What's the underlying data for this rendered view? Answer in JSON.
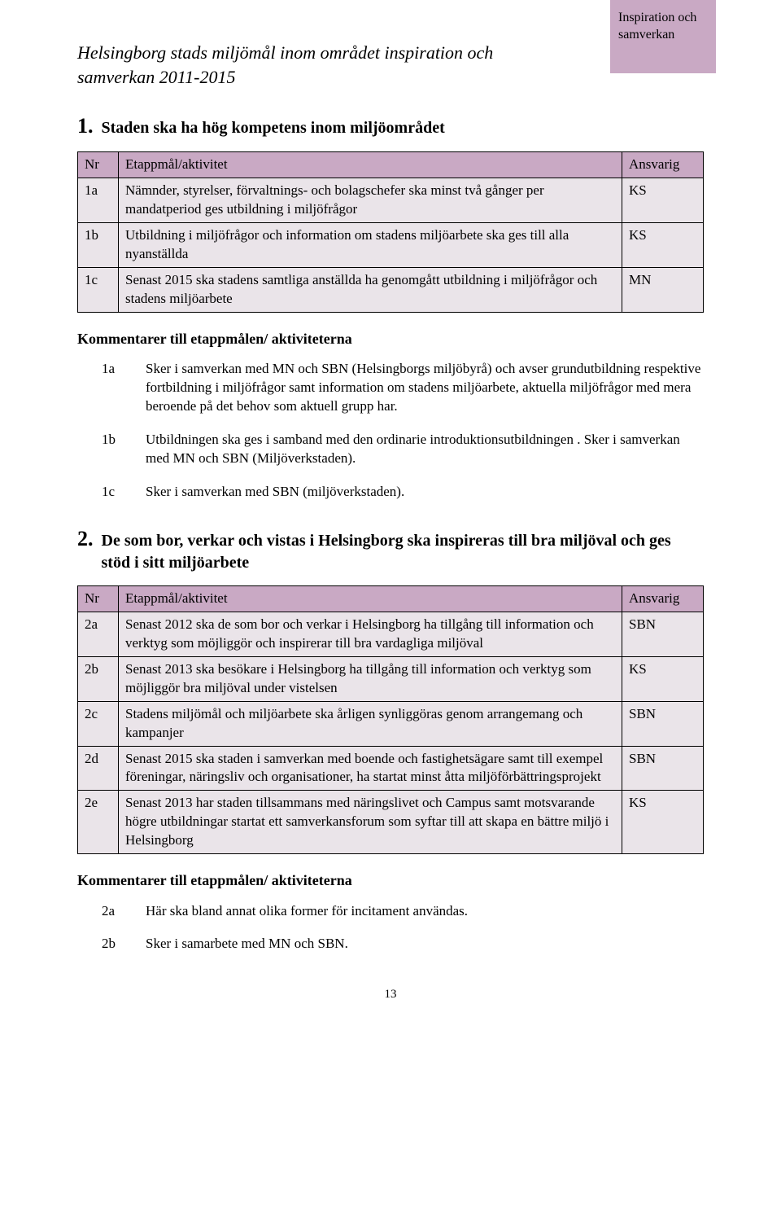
{
  "sidebar": {
    "text": "Inspiration och samverkan",
    "bg": "#c9a9c4"
  },
  "section_title": "Helsingborg stads miljömål inom området inspiration och samverkan 2011-2015",
  "section1": {
    "num": "1.",
    "heading": "Staden ska ha hög kompetens inom miljöområdet",
    "cols": {
      "nr": "Nr",
      "akt": "Etappmål/aktivitet",
      "ansv": "Ansvarig"
    },
    "rows": [
      {
        "nr": "1a",
        "akt": "Nämnder, styrelser, förvaltnings- och bolagschefer ska minst två gånger per mandatperiod ges utbildning i miljöfrågor",
        "ansv": "KS"
      },
      {
        "nr": "1b",
        "akt": "Utbildning i miljöfrågor och information om stadens miljöarbete ska ges till alla nyanställda",
        "ansv": "KS"
      },
      {
        "nr": "1c",
        "akt": "Senast 2015 ska stadens samtliga anställda ha genomgått utbildning i miljöfrågor och stadens miljöarbete",
        "ansv": "MN"
      }
    ],
    "comments_heading": "Kommentarer till etappmålen/ aktiviteterna",
    "comments": [
      {
        "id": "1a",
        "txt": "Sker i samverkan med MN och SBN (Helsingborgs miljöbyrå) och avser grundutbildning respektive fortbildning i miljöfrågor samt information om stadens miljöarbete, aktuella miljöfrågor med mera beroende på det behov som aktuell grupp har."
      },
      {
        "id": "1b",
        "txt": "Utbildningen ska ges i samband med den ordinarie introduktionsutbildningen . Sker i samverkan med MN och SBN (Miljöverkstaden)."
      },
      {
        "id": "1c",
        "txt": "Sker i samverkan med SBN (miljöverkstaden)."
      }
    ]
  },
  "section2": {
    "num": "2.",
    "heading": "De som bor, verkar och vistas i Helsingborg ska inspireras till bra miljöval och ges stöd i sitt miljöarbete",
    "cols": {
      "nr": "Nr",
      "akt": "Etappmål/aktivitet",
      "ansv": "Ansvarig"
    },
    "rows": [
      {
        "nr": "2a",
        "akt": "Senast 2012 ska de som bor och verkar i Helsingborg ha tillgång till information och verktyg som möjliggör och inspirerar till bra vardagliga miljöval",
        "ansv": "SBN"
      },
      {
        "nr": "2b",
        "akt": "Senast 2013 ska besökare i Helsingborg ha tillgång till information och verktyg som möjliggör bra miljöval under vistelsen",
        "ansv": "KS"
      },
      {
        "nr": "2c",
        "akt": "Stadens miljömål och miljöarbete ska årligen synliggöras genom arrangemang och kampanjer",
        "ansv": "SBN"
      },
      {
        "nr": "2d",
        "akt": "Senast 2015 ska staden i samverkan med boende och fastighetsägare samt till exempel föreningar, näringsliv och organisationer, ha startat minst åtta miljöförbättringsprojekt",
        "ansv": "SBN"
      },
      {
        "nr": "2e",
        "akt": "Senast 2013 har staden tillsammans med näringslivet och Campus samt motsvarande högre utbildningar startat ett samverkansforum som syftar till att skapa en bättre miljö i Helsingborg",
        "ansv": "KS"
      }
    ],
    "comments_heading": "Kommentarer till etappmålen/ aktiviteterna",
    "comments": [
      {
        "id": "2a",
        "txt": "Här ska bland annat olika former för incitament användas."
      },
      {
        "id": "2b",
        "txt": "Sker i samarbete med MN och SBN."
      }
    ]
  },
  "page_number": "13"
}
